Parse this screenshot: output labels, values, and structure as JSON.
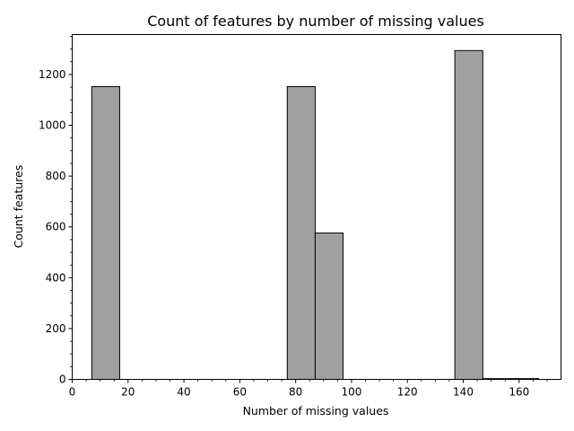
{
  "chart_data": {
    "type": "bar",
    "title": "Count of features by number of missing values",
    "xlabel": "Number of missing values",
    "ylabel": "Count features",
    "xlim": [
      0,
      175
    ],
    "ylim": [
      0,
      1357
    ],
    "x_ticks": [
      0,
      20,
      40,
      60,
      80,
      100,
      120,
      140,
      160
    ],
    "y_ticks": [
      0,
      200,
      400,
      600,
      800,
      1000,
      1200
    ],
    "grid": false,
    "legend": "none",
    "bar_color": "#a0a0a0",
    "edge_color": "#000000",
    "bins": [
      {
        "x0": 7,
        "x1": 17,
        "value": 1152
      },
      {
        "x0": 17,
        "x1": 27,
        "value": 0
      },
      {
        "x0": 27,
        "x1": 37,
        "value": 0
      },
      {
        "x0": 37,
        "x1": 47,
        "value": 0
      },
      {
        "x0": 47,
        "x1": 57,
        "value": 0
      },
      {
        "x0": 57,
        "x1": 67,
        "value": 0
      },
      {
        "x0": 67,
        "x1": 77,
        "value": 0
      },
      {
        "x0": 77,
        "x1": 87,
        "value": 1152
      },
      {
        "x0": 87,
        "x1": 97,
        "value": 576
      },
      {
        "x0": 97,
        "x1": 107,
        "value": 0
      },
      {
        "x0": 107,
        "x1": 117,
        "value": 0
      },
      {
        "x0": 117,
        "x1": 127,
        "value": 0
      },
      {
        "x0": 127,
        "x1": 137,
        "value": 0
      },
      {
        "x0": 137,
        "x1": 147,
        "value": 1294
      },
      {
        "x0": 147,
        "x1": 157,
        "value": 3
      },
      {
        "x0": 157,
        "x1": 167,
        "value": 3
      }
    ]
  }
}
